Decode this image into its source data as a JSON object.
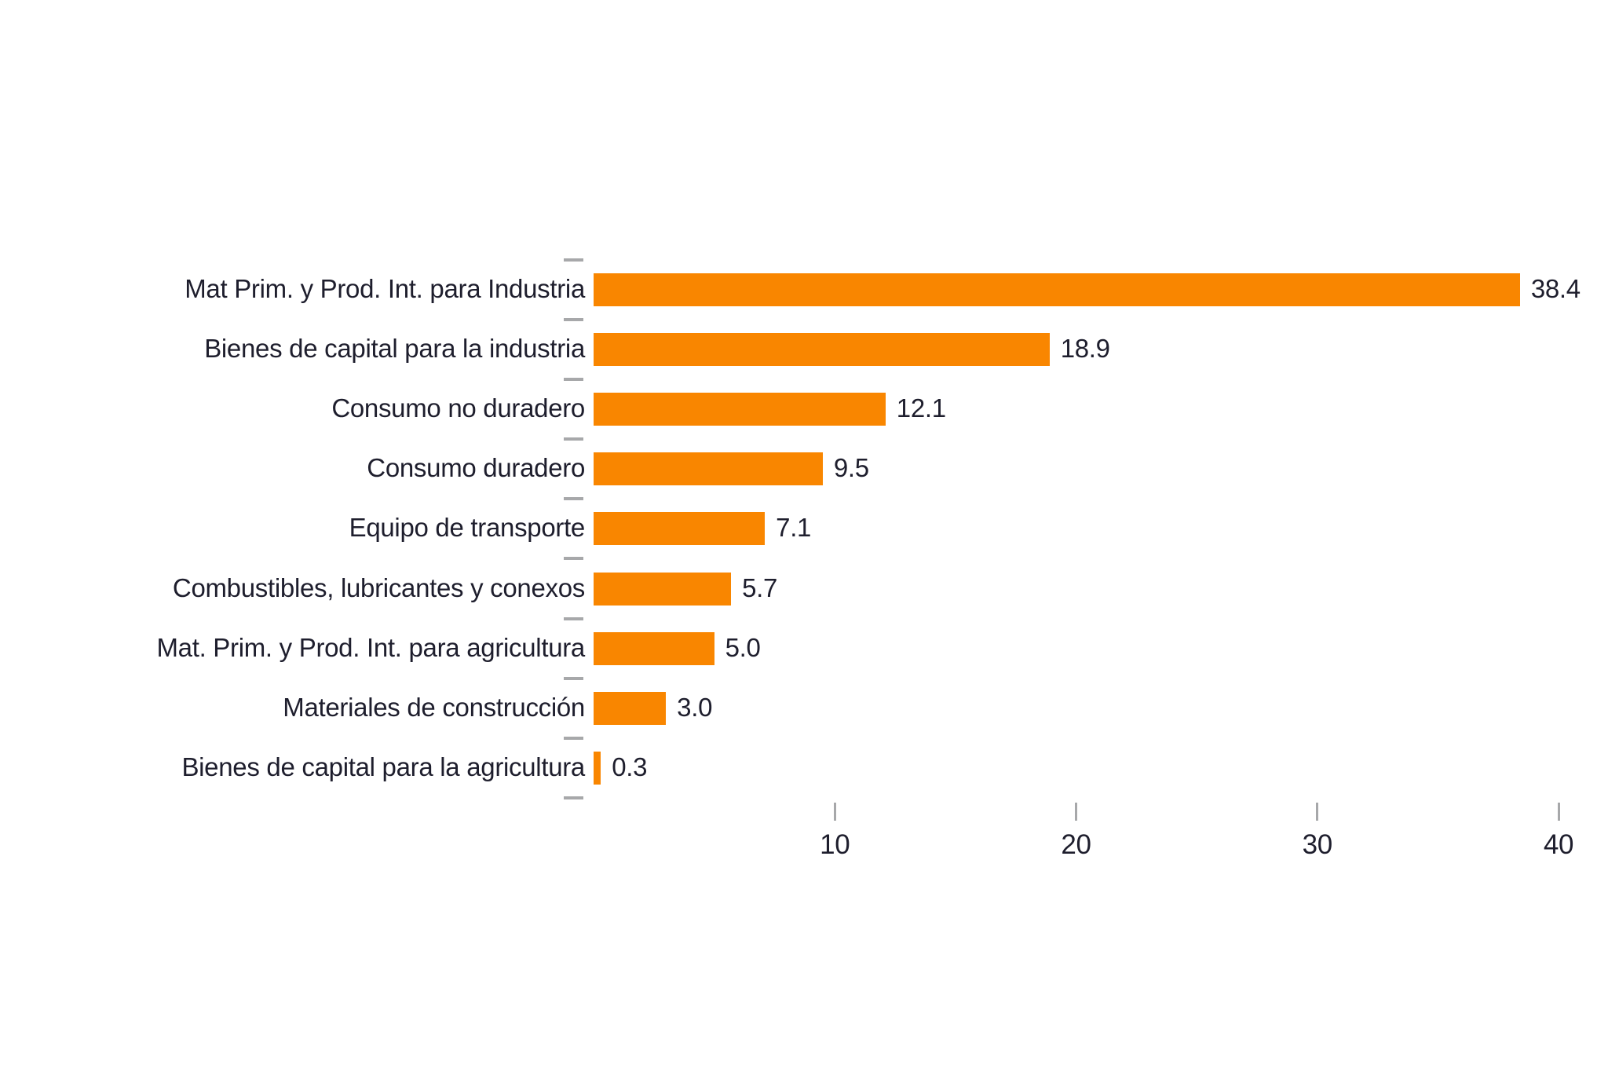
{
  "chart_data": {
    "type": "bar",
    "orientation": "horizontal",
    "title": "",
    "xlabel": "",
    "ylabel": "",
    "categories": [
      "Mat Prim. y Prod. Int. para Industria",
      "Bienes de capital para la industria",
      "Consumo no duradero",
      "Consumo duradero",
      "Equipo de transporte",
      "Combustibles, lubricantes y conexos",
      "Mat. Prim. y Prod. Int. para agricultura",
      "Materiales de construcción",
      "Bienes de capital para la agricultura"
    ],
    "values": [
      38.4,
      18.9,
      12.1,
      9.5,
      7.1,
      5.7,
      5.0,
      3.0,
      0.3
    ],
    "value_labels": [
      "38.4",
      "18.9",
      "12.1",
      "9.5",
      "7.1",
      "5.7",
      "5.0",
      "3.0",
      "0.3"
    ],
    "xlim": [
      0,
      40
    ],
    "x_ticks": [
      10,
      20,
      30,
      40
    ],
    "x_tick_labels": [
      "10",
      "20",
      "30",
      "40"
    ],
    "grid": false,
    "legend": null,
    "colors": {
      "bar": "#f98600",
      "text": "#1e1e2d",
      "tick": "#a7a8aa",
      "background": "#ffffff"
    }
  }
}
